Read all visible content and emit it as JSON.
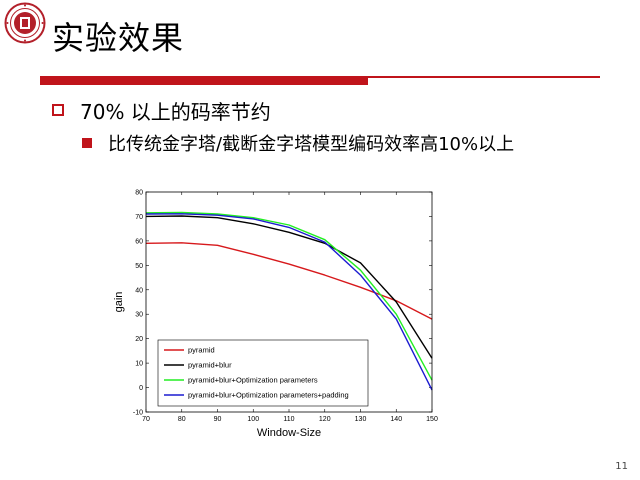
{
  "slide": {
    "title": "实验效果",
    "bullet_1": "70% 以上的码率节约",
    "bullet_2": "比传统金字塔/截断金字塔模型编码效率高10%以上",
    "page_number": "11"
  },
  "colors": {
    "accent": "#c0141b"
  },
  "icons": {
    "logo": "university-seal",
    "bullet_1": "hollow-square",
    "bullet_2": "filled-square"
  },
  "chart_data": {
    "type": "line",
    "xlabel": "Window-Size",
    "ylabel": "gain",
    "xlim": [
      70,
      150
    ],
    "ylim": [
      -10,
      80
    ],
    "x_ticks": [
      70,
      80,
      90,
      100,
      110,
      120,
      130,
      140,
      150
    ],
    "y_ticks": [
      -10,
      0,
      10,
      20,
      30,
      40,
      50,
      60,
      70,
      80
    ],
    "grid": false,
    "legend_position": "bottom-left",
    "series": [
      {
        "name": "pyramid",
        "color": "#d7191c",
        "x": [
          70,
          80,
          90,
          100,
          110,
          120,
          130,
          140,
          150
        ],
        "y": [
          59,
          59.2,
          58.2,
          54.5,
          50.5,
          46,
          41,
          35.5,
          28
        ]
      },
      {
        "name": "pyramid+blur",
        "color": "#000000",
        "x": [
          70,
          80,
          90,
          100,
          110,
          120,
          130,
          140,
          150
        ],
        "y": [
          70,
          70.2,
          69.5,
          67,
          63.5,
          59,
          51,
          35,
          12
        ]
      },
      {
        "name": "pyramid+blur+Optimization parameters",
        "color": "#22ee22",
        "x": [
          70,
          80,
          90,
          100,
          110,
          120,
          130,
          140,
          150
        ],
        "y": [
          71.5,
          71.6,
          71,
          69.5,
          66.5,
          60.5,
          48,
          30,
          3
        ]
      },
      {
        "name": "pyramid+blur+Optimization parameters+padding",
        "color": "#1c1cd0",
        "x": [
          70,
          80,
          90,
          100,
          110,
          120,
          130,
          140,
          150
        ],
        "y": [
          71,
          71.1,
          70.5,
          69,
          65.5,
          59.5,
          46,
          28,
          -1
        ]
      }
    ]
  }
}
